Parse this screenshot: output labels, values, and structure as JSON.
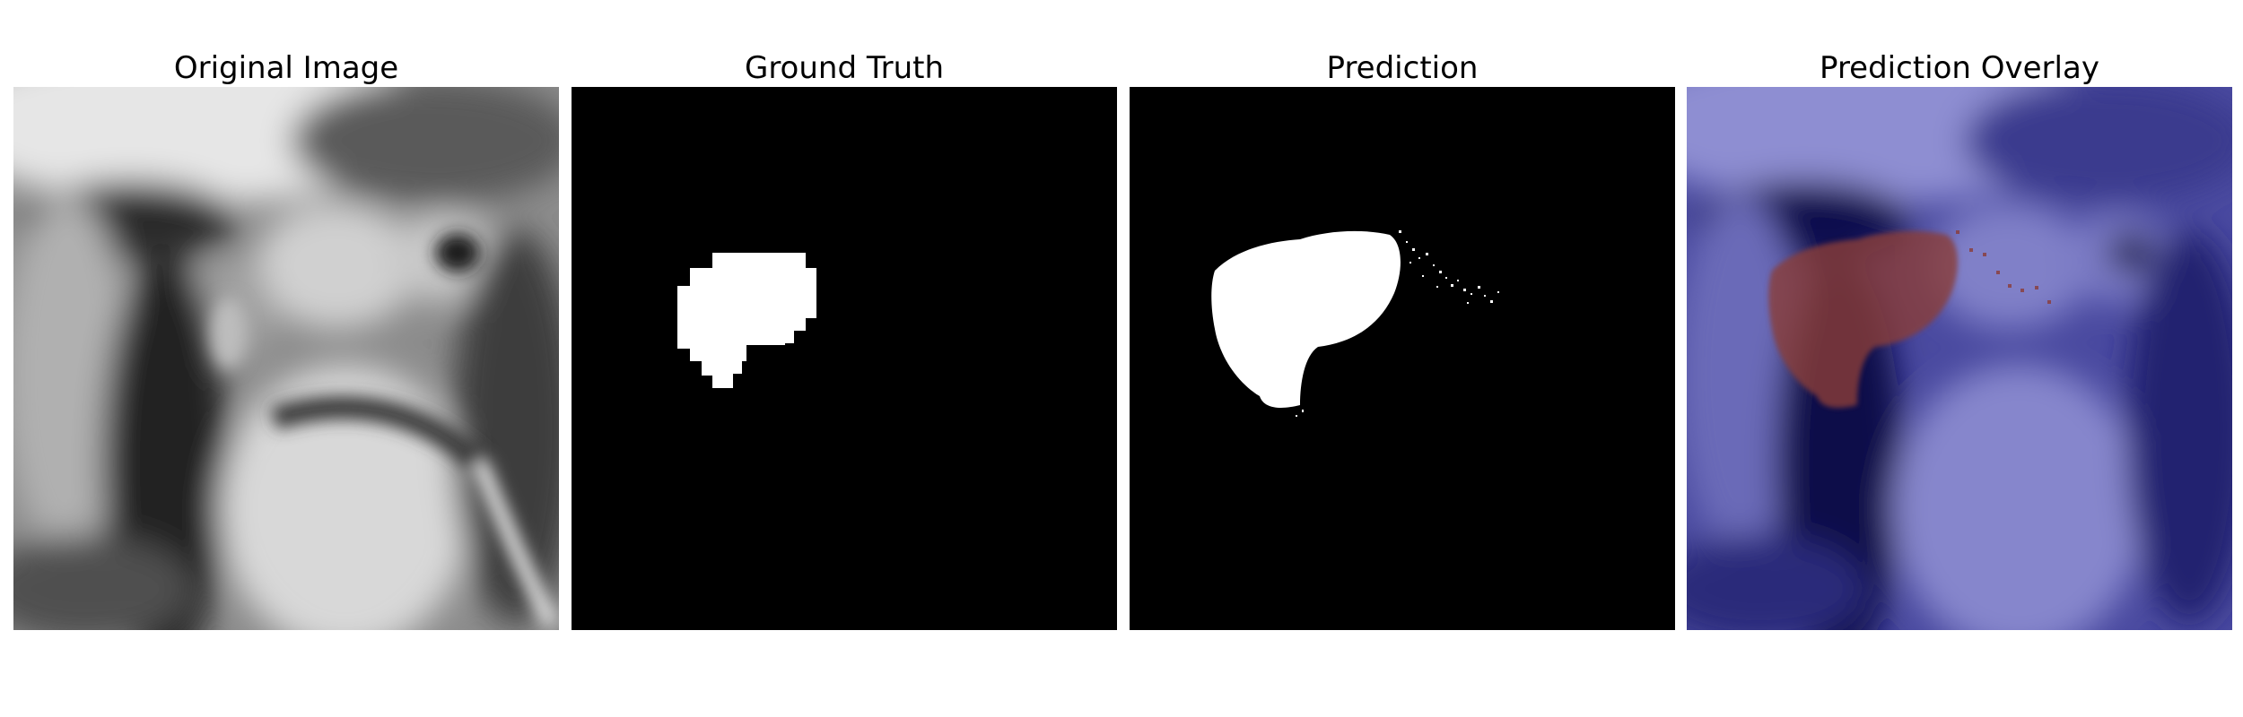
{
  "panels": [
    {
      "title": "Original Image",
      "content_icon": "mri-grayscale-slice-icon"
    },
    {
      "title": "Ground Truth",
      "content_icon": "binary-mask-icon"
    },
    {
      "title": "Prediction",
      "content_icon": "predicted-mask-icon"
    },
    {
      "title": "Prediction Overlay",
      "content_icon": "overlay-heatmap-icon"
    }
  ],
  "colors": {
    "background": "#ffffff",
    "mask_background": "#000000",
    "mask_foreground": "#ffffff",
    "overlay_base": "#1a1a6e",
    "overlay_light": "#8a8ad0",
    "overlay_prediction": "#8a3c38"
  }
}
